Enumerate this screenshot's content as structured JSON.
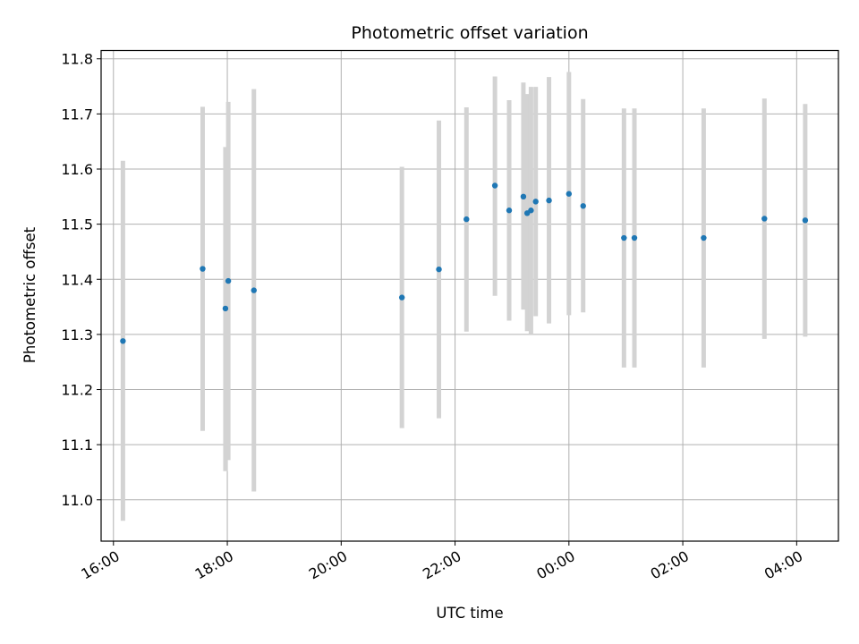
{
  "chart_data": {
    "type": "scatter",
    "title": "Photometric offset variation",
    "xlabel": "UTC time",
    "ylabel": "Photometric offset",
    "x_is_time": true,
    "xlim": [
      "15:47",
      "28:44"
    ],
    "ylim": [
      10.925,
      11.815
    ],
    "grid": true,
    "x_tick_values": [
      "16:00",
      "18:00",
      "20:00",
      "22:00",
      "24:00",
      "26:00",
      "28:00",
      "30:00"
    ],
    "x_tick_labels": [
      "16:00",
      "18:00",
      "20:00",
      "22:00",
      "00:00",
      "02:00",
      "04:00"
    ],
    "y_ticks": [
      11.0,
      11.1,
      11.2,
      11.3,
      11.4,
      11.5,
      11.6,
      11.7,
      11.8
    ],
    "y_tick_labels": [
      "11.0",
      "11.1",
      "11.2",
      "11.3",
      "11.4",
      "11.5",
      "11.6",
      "11.7",
      "11.8"
    ],
    "marker_color": "#1f77b4",
    "errorbar_color": "#d3d3d3",
    "points": [
      {
        "t": "16:10",
        "y": 11.288,
        "ylo": 10.962,
        "yhi": 11.615
      },
      {
        "t": "17:34",
        "y": 11.419,
        "ylo": 11.125,
        "yhi": 11.713
      },
      {
        "t": "17:58",
        "y": 11.347,
        "ylo": 11.052,
        "yhi": 11.64
      },
      {
        "t": "18:01",
        "y": 11.397,
        "ylo": 11.072,
        "yhi": 11.722
      },
      {
        "t": "18:28",
        "y": 11.38,
        "ylo": 11.015,
        "yhi": 11.745
      },
      {
        "t": "21:04",
        "y": 11.367,
        "ylo": 11.13,
        "yhi": 11.604
      },
      {
        "t": "21:43",
        "y": 11.418,
        "ylo": 11.148,
        "yhi": 11.688
      },
      {
        "t": "22:12",
        "y": 11.509,
        "ylo": 11.305,
        "yhi": 11.712
      },
      {
        "t": "22:42",
        "y": 11.57,
        "ylo": 11.37,
        "yhi": 11.768
      },
      {
        "t": "22:57",
        "y": 11.525,
        "ylo": 11.325,
        "yhi": 11.725
      },
      {
        "t": "23:12",
        "y": 11.55,
        "ylo": 11.345,
        "yhi": 11.757
      },
      {
        "t": "23:16",
        "y": 11.52,
        "ylo": 11.306,
        "yhi": 11.736
      },
      {
        "t": "23:20",
        "y": 11.525,
        "ylo": 11.3,
        "yhi": 11.749
      },
      {
        "t": "23:25",
        "y": 11.541,
        "ylo": 11.333,
        "yhi": 11.749
      },
      {
        "t": "23:39",
        "y": 11.543,
        "ylo": 11.32,
        "yhi": 11.767
      },
      {
        "t": "24:00",
        "y": 11.555,
        "ylo": 11.335,
        "yhi": 11.776
      },
      {
        "t": "24:15",
        "y": 11.533,
        "ylo": 11.34,
        "yhi": 11.727
      },
      {
        "t": "24:58",
        "y": 11.475,
        "ylo": 11.24,
        "yhi": 11.71
      },
      {
        "t": "25:09",
        "y": 11.475,
        "ylo": 11.24,
        "yhi": 11.71
      },
      {
        "t": "26:22",
        "y": 11.475,
        "ylo": 11.24,
        "yhi": 11.71
      },
      {
        "t": "27:26",
        "y": 11.51,
        "ylo": 11.292,
        "yhi": 11.728
      },
      {
        "t": "28:09",
        "y": 11.507,
        "ylo": 11.296,
        "yhi": 11.718
      }
    ]
  }
}
